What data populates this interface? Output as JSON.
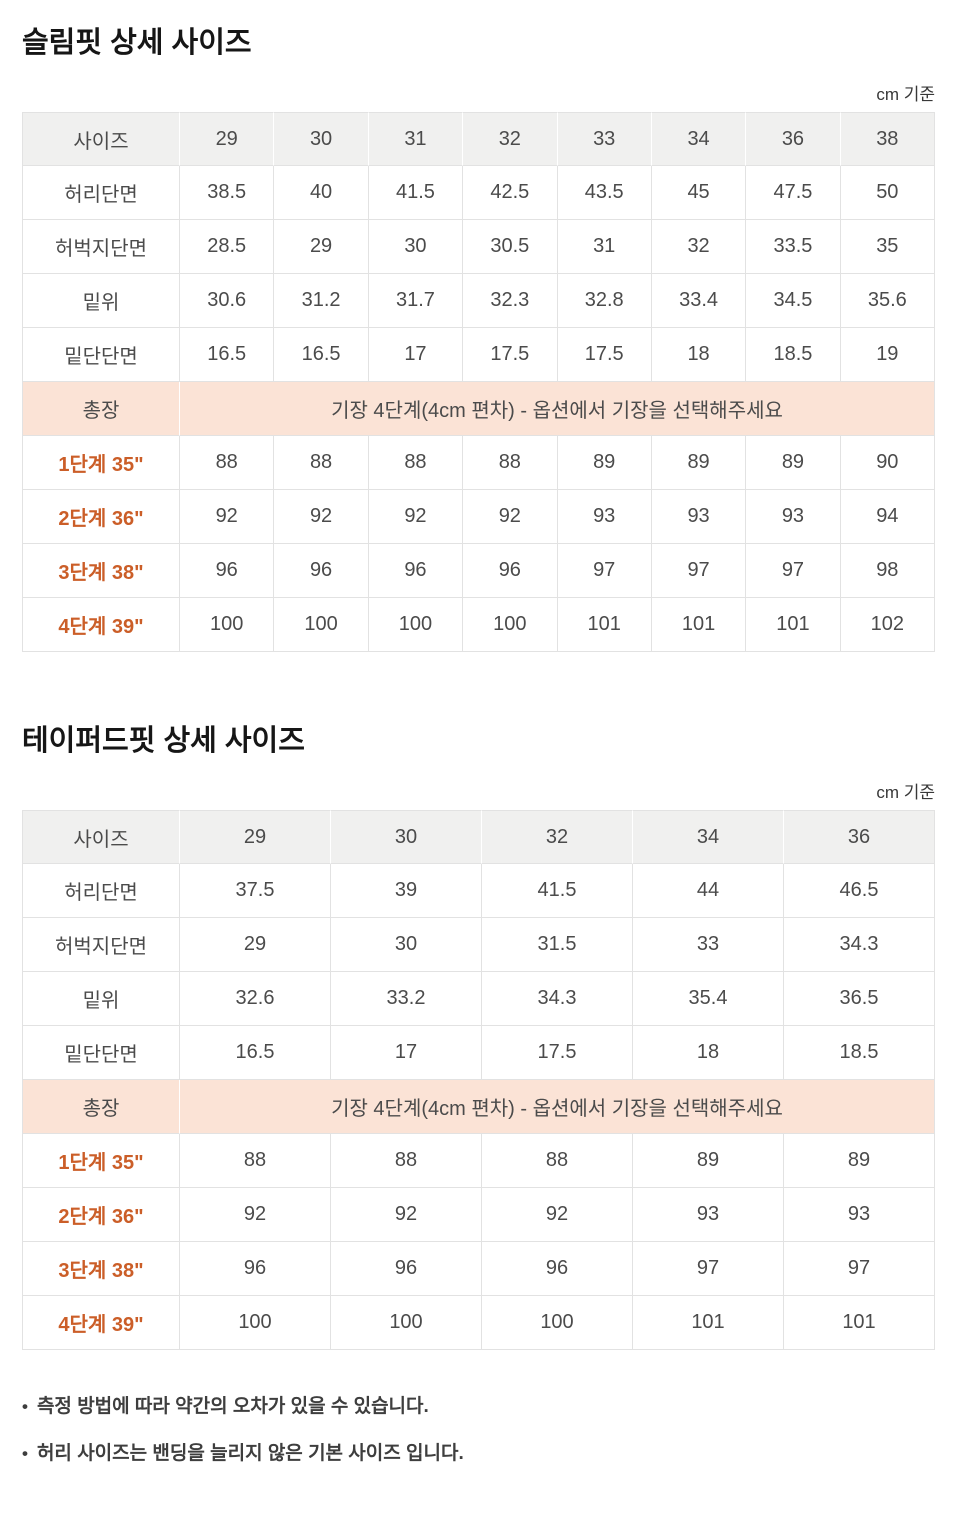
{
  "unit_note": "cm 기준",
  "footnote_bullet": "•",
  "footnotes": [
    "측정 방법에 따라 약간의 오차가 있을 수 있습니다.",
    "허리 사이즈는 밴딩을 늘리지 않은 기본 사이즈 입니다."
  ],
  "colors": {
    "accent_orange": "#cb5e28",
    "header_row_bg": "#f0f0ef",
    "total_row_bg": "#fbe3d6",
    "border": "#e2e2e2",
    "body_text": "#4b4b4b"
  },
  "tables": [
    {
      "title": "슬림핏 상세 사이즈",
      "header": [
        "사이즈",
        "29",
        "30",
        "31",
        "32",
        "33",
        "34",
        "36",
        "38"
      ],
      "measure_rows": [
        {
          "label": "허리단면",
          "values": [
            "38.5",
            "40",
            "41.5",
            "42.5",
            "43.5",
            "45",
            "47.5",
            "50"
          ]
        },
        {
          "label": "허벅지단면",
          "values": [
            "28.5",
            "29",
            "30",
            "30.5",
            "31",
            "32",
            "33.5",
            "35"
          ]
        },
        {
          "label": "밑위",
          "values": [
            "30.6",
            "31.2",
            "31.7",
            "32.3",
            "32.8",
            "33.4",
            "34.5",
            "35.6"
          ]
        },
        {
          "label": "밑단단면",
          "values": [
            "16.5",
            "16.5",
            "17",
            "17.5",
            "17.5",
            "18",
            "18.5",
            "19"
          ]
        }
      ],
      "total_row": {
        "label": "총장",
        "note": "기장 4단계(4cm 편차) - 옵션에서 기장을 선택해주세요"
      },
      "length_rows": [
        {
          "label": "1단계 35\"",
          "values": [
            "88",
            "88",
            "88",
            "88",
            "89",
            "89",
            "89",
            "90"
          ]
        },
        {
          "label": "2단계 36\"",
          "values": [
            "92",
            "92",
            "92",
            "92",
            "93",
            "93",
            "93",
            "94"
          ]
        },
        {
          "label": "3단계 38\"",
          "values": [
            "96",
            "96",
            "96",
            "96",
            "97",
            "97",
            "97",
            "98"
          ]
        },
        {
          "label": "4단계 39\"",
          "values": [
            "100",
            "100",
            "100",
            "100",
            "101",
            "101",
            "101",
            "102"
          ]
        }
      ]
    },
    {
      "title": "테이퍼드핏 상세 사이즈",
      "header": [
        "사이즈",
        "29",
        "30",
        "32",
        "34",
        "36"
      ],
      "measure_rows": [
        {
          "label": "허리단면",
          "values": [
            "37.5",
            "39",
            "41.5",
            "44",
            "46.5"
          ]
        },
        {
          "label": "허벅지단면",
          "values": [
            "29",
            "30",
            "31.5",
            "33",
            "34.3"
          ]
        },
        {
          "label": "밑위",
          "values": [
            "32.6",
            "33.2",
            "34.3",
            "35.4",
            "36.5"
          ]
        },
        {
          "label": "밑단단면",
          "values": [
            "16.5",
            "17",
            "17.5",
            "18",
            "18.5"
          ]
        }
      ],
      "total_row": {
        "label": "총장",
        "note": "기장 4단계(4cm 편차) - 옵션에서 기장을 선택해주세요"
      },
      "length_rows": [
        {
          "label": "1단계 35\"",
          "values": [
            "88",
            "88",
            "88",
            "89",
            "89"
          ]
        },
        {
          "label": "2단계 36\"",
          "values": [
            "92",
            "92",
            "92",
            "93",
            "93"
          ]
        },
        {
          "label": "3단계 38\"",
          "values": [
            "96",
            "96",
            "96",
            "97",
            "97"
          ]
        },
        {
          "label": "4단계 39\"",
          "values": [
            "100",
            "100",
            "100",
            "101",
            "101"
          ]
        }
      ]
    }
  ]
}
